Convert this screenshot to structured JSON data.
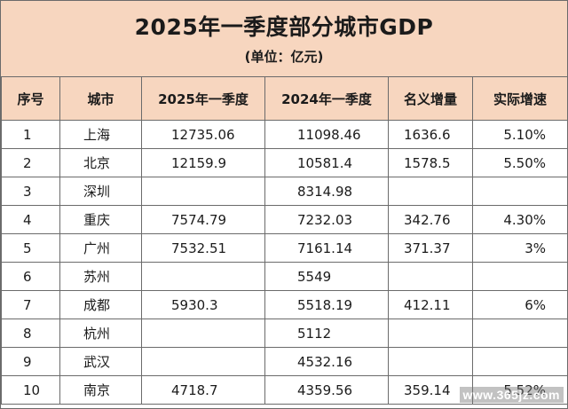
{
  "title": "2025年一季度部分城市GDP",
  "subtitle": "(单位：亿元)",
  "headers": [
    "序号",
    "城市",
    "2025年一季度",
    "2024年一季度",
    "名义增量",
    "实际增速"
  ],
  "rows": [
    {
      "seq": "1",
      "city": "上海",
      "q2025": "12735.06",
      "q2024": "11098.46",
      "nominal_increase": "1636.6",
      "real_growth": "5.10%"
    },
    {
      "seq": "2",
      "city": "北京",
      "q2025": "12159.9",
      "q2024": "10581.4",
      "nominal_increase": "1578.5",
      "real_growth": "5.50%"
    },
    {
      "seq": "3",
      "city": "深圳",
      "q2025": "",
      "q2024": "8314.98",
      "nominal_increase": "",
      "real_growth": ""
    },
    {
      "seq": "4",
      "city": "重庆",
      "q2025": "7574.79",
      "q2024": "7232.03",
      "nominal_increase": "342.76",
      "real_growth": "4.30%"
    },
    {
      "seq": "5",
      "city": "广州",
      "q2025": "7532.51",
      "q2024": "7161.14",
      "nominal_increase": "371.37",
      "real_growth": "3%"
    },
    {
      "seq": "6",
      "city": "苏州",
      "q2025": "",
      "q2024": "5549",
      "nominal_increase": "",
      "real_growth": ""
    },
    {
      "seq": "7",
      "city": "成都",
      "q2025": "5930.3",
      "q2024": "5518.19",
      "nominal_increase": "412.11",
      "real_growth": "6%"
    },
    {
      "seq": "8",
      "city": "杭州",
      "q2025": "",
      "q2024": "5112",
      "nominal_increase": "",
      "real_growth": ""
    },
    {
      "seq": "9",
      "city": "武汉",
      "q2025": "",
      "q2024": "4532.16",
      "nominal_increase": "",
      "real_growth": ""
    },
    {
      "seq": "10",
      "city": "南京",
      "q2025": "4718.7",
      "q2024": "4359.56",
      "nominal_increase": "359.14",
      "real_growth": "5.52%"
    }
  ],
  "watermark": "www.365jz.com",
  "colors": {
    "header_bg": "#f7d6bf",
    "border": "#6b6b6b"
  }
}
